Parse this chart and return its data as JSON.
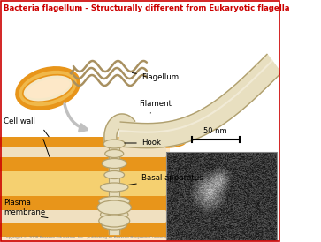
{
  "title": "Bacteria flagellum - Structurally different from Eukaryotic flagella",
  "title_color": "#cc0000",
  "bg_color": "#ffffff",
  "border_color": "#cc0000",
  "label_flagellum": "Flagellum",
  "label_filament": "Filament",
  "label_hook": "Hook",
  "label_basal": "Basal apparatus",
  "label_cellwall": "Cell wall",
  "label_plasma": "Plasma\nmembrane",
  "label_scalebar": "50 nm",
  "orange_dark": "#e8951a",
  "orange_mid": "#f0b84a",
  "orange_light": "#f5d070",
  "cream_fill": "#e8dfc0",
  "cream_dark": "#b0a070",
  "cream_light": "#f5f0e0",
  "cell_inner": "#fde8c8",
  "arrow_gray": "#c0c0c0",
  "flagellum_color": "#a89060"
}
